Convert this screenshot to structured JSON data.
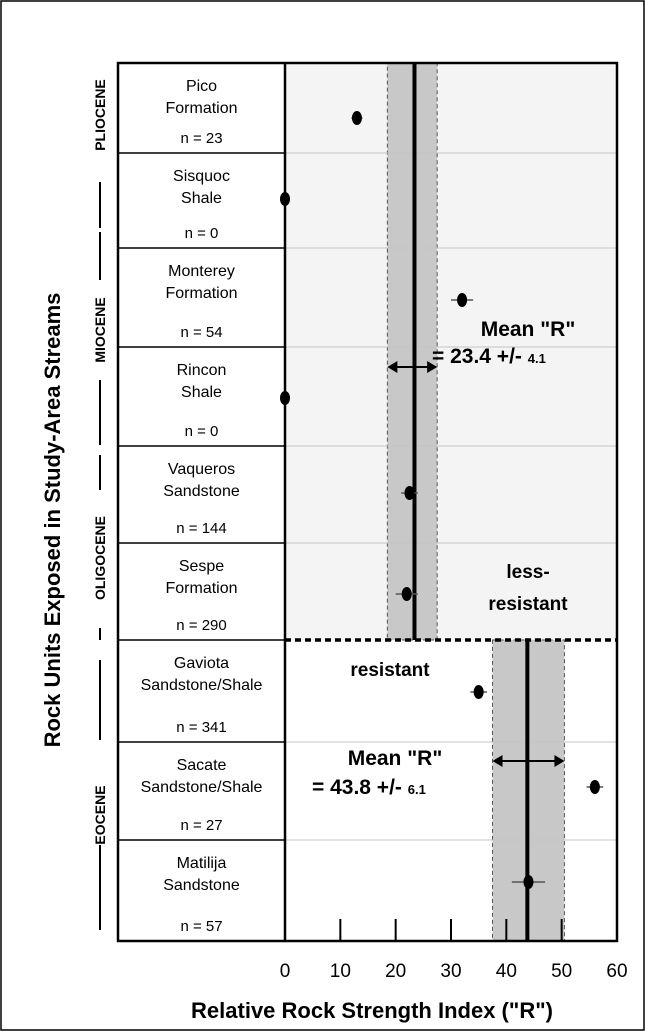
{
  "chart_data": {
    "type": "scatter",
    "xlabel": "Relative Rock Strength Index (\"R\")",
    "ylabel": "Rock Units Exposed in Study-Area Streams",
    "xlim": [
      0,
      60
    ],
    "x_ticks": [
      "0",
      "10",
      "20",
      "30",
      "40",
      "50",
      "60"
    ],
    "units": [
      {
        "name": [
          "Pico",
          "Formation"
        ],
        "n": "n = 23",
        "value": 13,
        "err": 1
      },
      {
        "name": [
          "Sisquoc",
          "Shale"
        ],
        "n": "n = 0",
        "value": 0,
        "err": 0
      },
      {
        "name": [
          "Monterey",
          "Formation"
        ],
        "n": "n = 54",
        "value": 32,
        "err": 2
      },
      {
        "name": [
          "Rincon",
          "Shale"
        ],
        "n": "n = 0",
        "value": 0,
        "err": 0
      },
      {
        "name": [
          "Vaqueros",
          "Sandstone"
        ],
        "n": "n = 144",
        "value": 22.5,
        "err": 1.5
      },
      {
        "name": [
          "Sespe",
          "Formation"
        ],
        "n": "n = 290",
        "value": 22,
        "err": 2
      },
      {
        "name": [
          "Gaviota",
          "Sandstone/Shale"
        ],
        "n": "n = 341",
        "value": 35,
        "err": 1.5
      },
      {
        "name": [
          "Sacate",
          "Sandstone/Shale"
        ],
        "n": "n = 27",
        "value": 56,
        "err": 1.5
      },
      {
        "name": [
          "Matilija",
          "Sandstone"
        ],
        "n": "n = 57",
        "value": 44,
        "err": 3
      }
    ],
    "epochs": [
      "PLIOCENE",
      "MIOCENE",
      "OLIGOCENE",
      "EOCENE"
    ],
    "groups": [
      {
        "mean": 23.4,
        "band": [
          18.5,
          27.5
        ],
        "label_main": "Mean \"R\"",
        "label_value": "= 23.4 +/-",
        "label_sd": "4.1"
      },
      {
        "mean": 43.8,
        "band": [
          37.5,
          50.5
        ],
        "label_main": "Mean \"R\"",
        "label_value": "= 43.8 +/-",
        "label_sd": "6.1"
      }
    ],
    "zone_labels": {
      "upper": [
        "less-",
        "resistant"
      ],
      "lower": "resistant"
    },
    "colors": {
      "band": "#c8c8c8",
      "upper_bg": "#f4f4f4",
      "line": "#000000"
    }
  }
}
